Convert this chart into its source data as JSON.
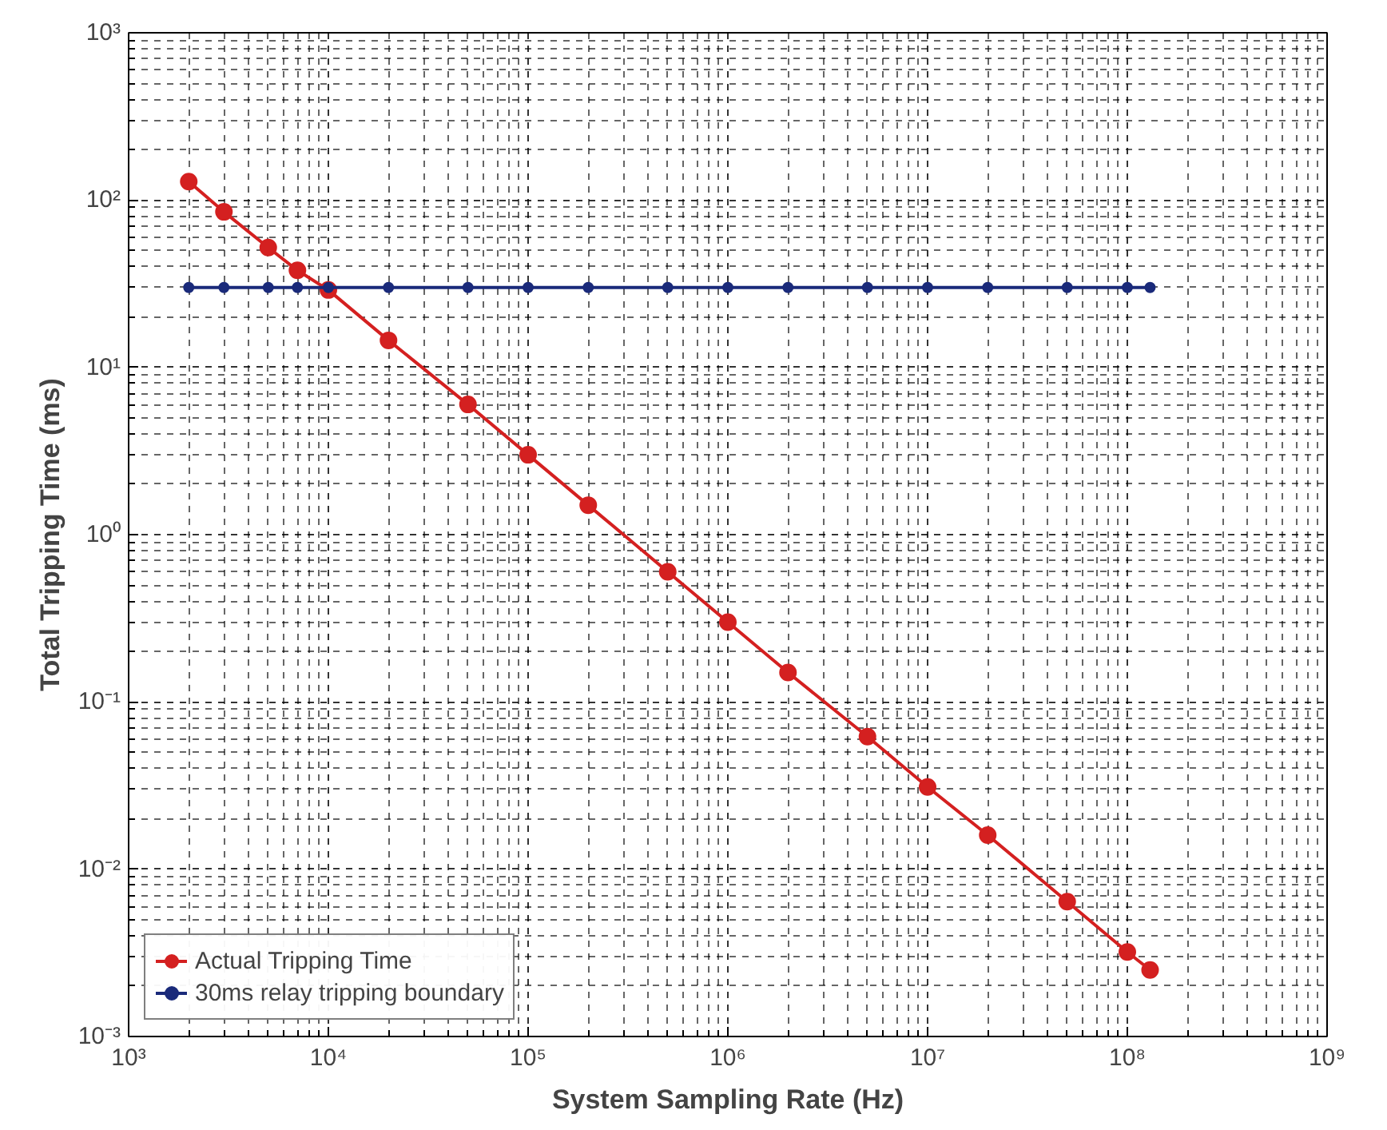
{
  "chart_data": {
    "type": "line",
    "xlabel": "System Sampling Rate (Hz)",
    "ylabel": "Total Tripping Time (ms)",
    "x": [
      2000,
      3000,
      5000,
      7000,
      10000,
      20000,
      50000,
      100000,
      200000,
      500000,
      1000000,
      2000000,
      5000000,
      10000000,
      20000000,
      50000000,
      100000000,
      130000000
    ],
    "series": [
      {
        "name": "Actual Tripping Time",
        "color": "#d42020",
        "values": [
          129,
          85,
          52,
          38,
          29,
          14.5,
          6,
          3.0,
          1.5,
          0.6,
          0.3,
          0.15,
          0.062,
          0.031,
          0.016,
          0.0064,
          0.0032,
          0.0025
        ]
      },
      {
        "name": "30ms relay tripping boundary",
        "color": "#1a2a7a",
        "values": [
          30,
          30,
          30,
          30,
          30,
          30,
          30,
          30,
          30,
          30,
          30,
          30,
          30,
          30,
          30,
          30,
          30,
          30
        ]
      }
    ],
    "log": "xy",
    "marker": "circle",
    "line_style": "solid",
    "grid": true,
    "legend": "bottom left",
    "xlim": [
      1000,
      1000000000
    ],
    "ylim": [
      0.001,
      1000
    ],
    "xticks": [
      {
        "value": 1000,
        "label": "10³"
      },
      {
        "value": 10000,
        "label": "10⁴"
      },
      {
        "value": 100000,
        "label": "10⁵"
      },
      {
        "value": 1000000,
        "label": "10⁶"
      },
      {
        "value": 10000000,
        "label": "10⁷"
      },
      {
        "value": 100000000,
        "label": "10⁸"
      },
      {
        "value": 1000000000,
        "label": "10⁹"
      }
    ],
    "yticks": [
      {
        "value": 0.001,
        "label": "10⁻³"
      },
      {
        "value": 0.01,
        "label": "10⁻²"
      },
      {
        "value": 0.1,
        "label": "10⁻¹"
      },
      {
        "value": 1,
        "label": "10⁰"
      },
      {
        "value": 10,
        "label": "10¹"
      },
      {
        "value": 100,
        "label": "10²"
      },
      {
        "value": 1000,
        "label": "10³"
      }
    ]
  }
}
